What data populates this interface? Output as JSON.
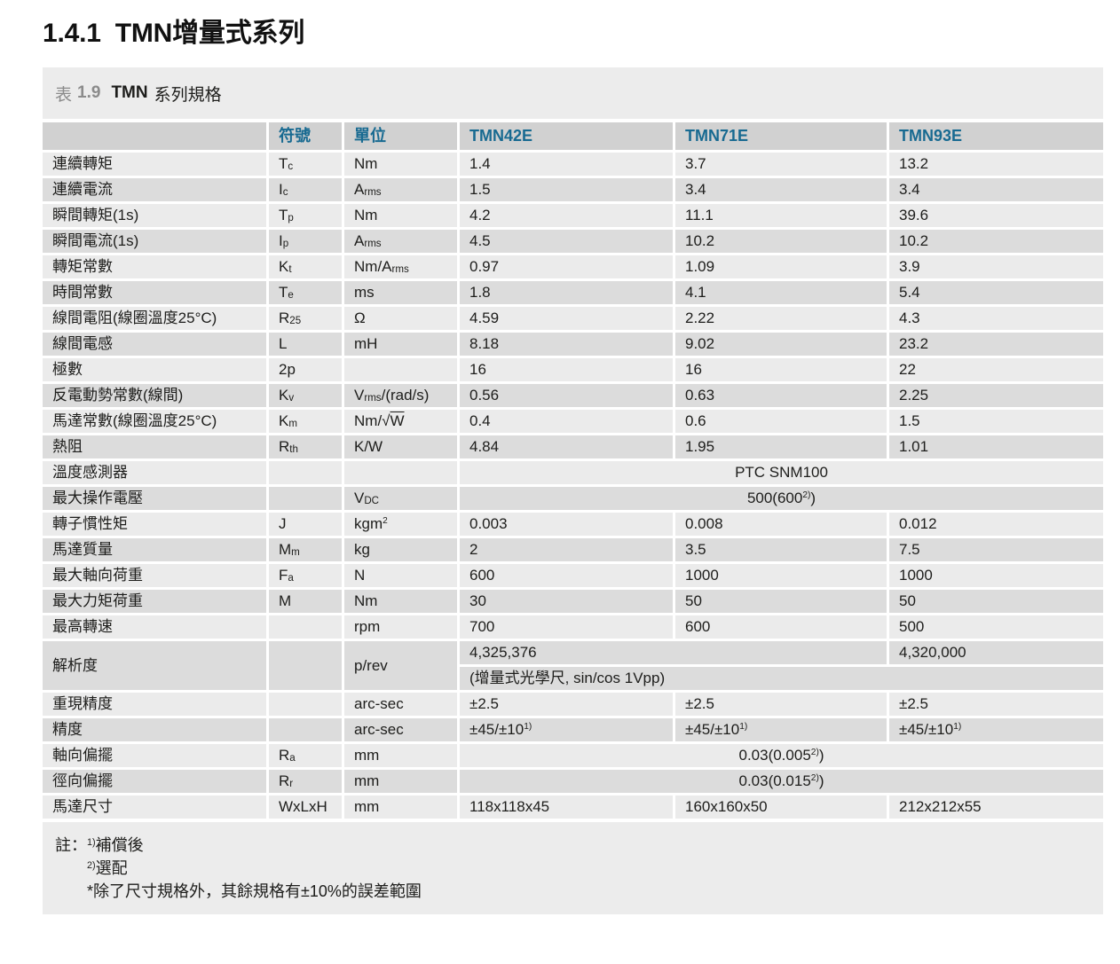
{
  "header": {
    "section_number": "1.4.1",
    "section_title": "TMN增量式系列"
  },
  "table": {
    "caption": {
      "label": "表",
      "number": "1.9",
      "series": "TMN",
      "text": "系列規格"
    },
    "columns": {
      "name": "",
      "symbol": "符號",
      "unit": "單位",
      "models": [
        "TMN42E",
        "TMN71E",
        "TMN93E"
      ]
    },
    "rows": [
      {
        "name": "連續轉矩",
        "symbol": "T_{c}",
        "unit": "Nm",
        "values": [
          "1.4",
          "3.7",
          "13.2"
        ]
      },
      {
        "name": "連續電流",
        "symbol": "I_{c}",
        "unit": "A_{rms}",
        "values": [
          "1.5",
          "3.4",
          "3.4"
        ]
      },
      {
        "name": "瞬間轉矩(1s)",
        "symbol": "T_{p}",
        "unit": "Nm",
        "values": [
          "4.2",
          "11.1",
          "39.6"
        ]
      },
      {
        "name": "瞬間電流(1s)",
        "symbol": "I_{p}",
        "unit": "A_{rms}",
        "values": [
          "4.5",
          "10.2",
          "10.2"
        ]
      },
      {
        "name": "轉矩常數",
        "symbol": "K_{t}",
        "unit": "Nm/A_{rms}",
        "values": [
          "0.97",
          "1.09",
          "3.9"
        ]
      },
      {
        "name": "時間常數",
        "symbol": "T_{e}",
        "unit": "ms",
        "values": [
          "1.8",
          "4.1",
          "5.4"
        ]
      },
      {
        "name": "線間電阻(線圈溫度25°C)",
        "symbol": "R_{25}",
        "unit": "Ω",
        "values": [
          "4.59",
          "2.22",
          "4.3"
        ]
      },
      {
        "name": "線間電感",
        "symbol": "L",
        "unit": "mH",
        "values": [
          "8.18",
          "9.02",
          "23.2"
        ]
      },
      {
        "name": "極數",
        "symbol": "2p",
        "unit": "",
        "values": [
          "16",
          "16",
          "22"
        ]
      },
      {
        "name": "反電動勢常數(線間)",
        "symbol": "K_{v}",
        "unit": "V_{rms}/(rad/s)",
        "values": [
          "0.56",
          "0.63",
          "2.25"
        ]
      },
      {
        "name": "馬達常數(線圈溫度25°C)",
        "symbol": "K_{m}",
        "unit": "Nm/√o{W}",
        "values": [
          "0.4",
          "0.6",
          "1.5"
        ]
      },
      {
        "name": "熱阻",
        "symbol": "R_{th}",
        "unit": "K/W",
        "values": [
          "4.84",
          "1.95",
          "1.01"
        ]
      },
      {
        "name": "溫度感測器",
        "symbol": "",
        "unit": "",
        "span_value": "PTC SNM100"
      },
      {
        "name": "最大操作電壓",
        "symbol": "",
        "unit": "V_{DC}",
        "span_value": "500(600^{2)})"
      },
      {
        "name": "轉子慣性矩",
        "symbol": "J",
        "unit": "kgm^{2}",
        "values": [
          "0.003",
          "0.008",
          "0.012"
        ]
      },
      {
        "name": "馬達質量",
        "symbol": "M_{m}",
        "unit": "kg",
        "values": [
          "2",
          "3.5",
          "7.5"
        ]
      },
      {
        "name": "最大軸向荷重",
        "symbol": "F_{a}",
        "unit": "N",
        "values": [
          "600",
          "1000",
          "1000"
        ]
      },
      {
        "name": "最大力矩荷重",
        "symbol": "M",
        "unit": "Nm",
        "values": [
          "30",
          "50",
          "50"
        ]
      },
      {
        "name": "最高轉速",
        "symbol": "",
        "unit": "rpm",
        "values": [
          "700",
          "600",
          "500"
        ]
      },
      {
        "name": "解析度",
        "symbol": "",
        "unit": "p/rev",
        "resolution": {
          "left": "4,325,376",
          "right": "4,320,000",
          "sub": "(增量式光學尺, sin/cos 1Vpp)"
        }
      },
      {
        "name": "重現精度",
        "symbol": "",
        "unit": "arc-sec",
        "values": [
          "±2.5",
          "±2.5",
          "±2.5"
        ]
      },
      {
        "name": "精度",
        "symbol": "",
        "unit": "arc-sec",
        "values": [
          "±45/±10^{1)}",
          "±45/±10^{1)}",
          "±45/±10^{1)}"
        ]
      },
      {
        "name": "軸向偏擺",
        "symbol": "R_{a}",
        "unit": "mm",
        "span_value": "0.03(0.005^{2)})"
      },
      {
        "name": "徑向偏擺",
        "symbol": "R_{r}",
        "unit": "mm",
        "span_value": "0.03(0.015^{2)})"
      },
      {
        "name": "馬達尺寸",
        "symbol": "WxLxH",
        "unit": "mm",
        "values": [
          "118x118x45",
          "160x160x50",
          "212x212x55"
        ]
      }
    ]
  },
  "notes": {
    "label": "註：",
    "lines": [
      "^{1)}補償後",
      "^{2)}選配",
      "*除了尺寸規格外，其餘規格有±10%的誤差範圍"
    ]
  },
  "colors": {
    "accent_teal": "#186a91",
    "row_light": "#ebebeb",
    "row_dark": "#dcdcdc",
    "header_row_bg": "#d1d1d1",
    "block_bg": "#ececec"
  }
}
